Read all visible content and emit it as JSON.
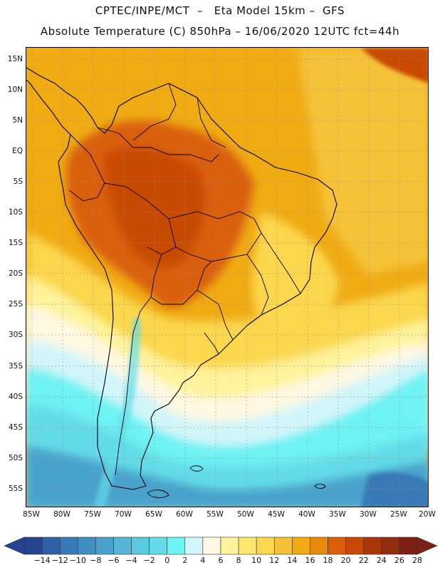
{
  "header": {
    "line1": "CPTEC/INPE/MCT  –   Eta Model 15km –  GFS",
    "line2": "Absolute Temperature (C) 850hPa – 16/06/2020 12UTC fct=44h"
  },
  "map": {
    "lat_labels": [
      "15N",
      "10N",
      "5N",
      "EQ",
      "5S",
      "10S",
      "15S",
      "20S",
      "25S",
      "30S",
      "35S",
      "40S",
      "45S",
      "50S",
      "55S"
    ],
    "lon_labels": [
      "85W",
      "80W",
      "75W",
      "70W",
      "65W",
      "60W",
      "55W",
      "50W",
      "45W",
      "40W",
      "35W",
      "30W",
      "25W",
      "20W"
    ]
  },
  "colorbar": {
    "labels": [
      "-14",
      "-12",
      "-10",
      "-8",
      "-6",
      "-4",
      "-2",
      "0",
      "2",
      "4",
      "6",
      "8",
      "10",
      "12",
      "14",
      "16",
      "18",
      "20",
      "22",
      "24",
      "26",
      "28"
    ],
    "colors": [
      "#25438f",
      "#2f60a6",
      "#3779b6",
      "#3f8ec2",
      "#4aa2cc",
      "#55b6d6",
      "#5ccade",
      "#63dce8",
      "#6ef2f4",
      "#d2f6fa",
      "#fff8e2",
      "#fff39c",
      "#fde76f",
      "#fbd74e",
      "#f5c237",
      "#f0ab13",
      "#e88b0c",
      "#da5f08",
      "#c84806",
      "#ac3507",
      "#922c0e",
      "#7c1f16"
    ]
  }
}
